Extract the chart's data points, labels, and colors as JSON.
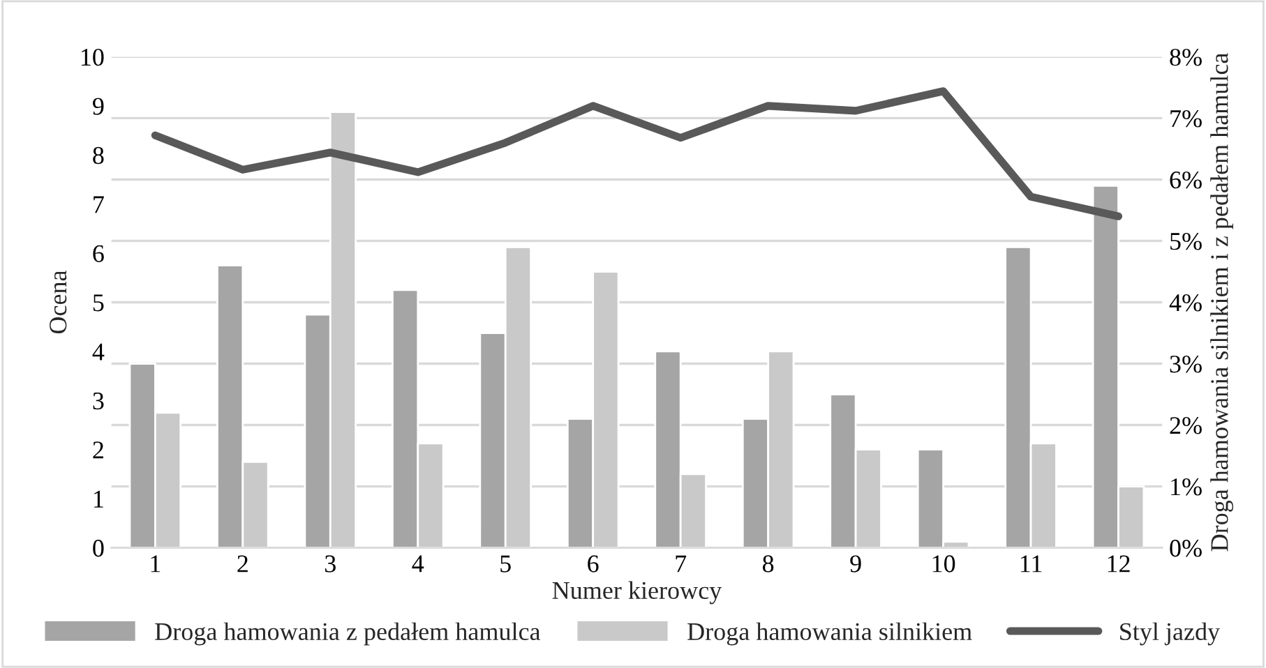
{
  "chart_data": {
    "type": "bar",
    "xlabel": "Numer kierowcy",
    "ylabel": "Ocena",
    "y2label": "Droga hamowania silnikiem i z pedałem hamulca",
    "categories": [
      "1",
      "2",
      "3",
      "4",
      "5",
      "6",
      "7",
      "8",
      "9",
      "10",
      "11",
      "12"
    ],
    "series": [
      {
        "name": "Droga hamowania z pedałem hamulca",
        "color": "#a5a5a5",
        "axis": "y2",
        "values": [
          3.0,
          4.6,
          3.8,
          4.2,
          3.5,
          2.1,
          3.2,
          2.1,
          2.5,
          1.6,
          4.9,
          5.9
        ]
      },
      {
        "name": "Droga hamowania silnikiem",
        "color": "#c9c9c9",
        "axis": "y2",
        "values": [
          2.2,
          1.4,
          7.1,
          1.7,
          4.9,
          4.5,
          1.2,
          3.2,
          1.6,
          0.1,
          1.7,
          1.0
        ]
      },
      {
        "name": "Styl jazdy",
        "type": "line",
        "color": "#595959",
        "values": [
          8.4,
          7.7,
          8.05,
          7.65,
          8.25,
          9.0,
          8.35,
          9.0,
          8.9,
          9.3,
          7.15,
          6.75
        ]
      }
    ],
    "ylim": [
      0,
      10
    ],
    "yticks": [
      0,
      1,
      2,
      3,
      4,
      5,
      6,
      7,
      8,
      9,
      10
    ],
    "y2lim": [
      0,
      8
    ],
    "y2ticks": [
      {
        "value": 0,
        "label": "0%"
      },
      {
        "value": 1,
        "label": "1%"
      },
      {
        "value": 2,
        "label": "2%"
      },
      {
        "value": 3,
        "label": "3%"
      },
      {
        "value": 4,
        "label": "4%"
      },
      {
        "value": 5,
        "label": "5%"
      },
      {
        "value": 6,
        "label": "6%"
      },
      {
        "value": 7,
        "label": "7%"
      },
      {
        "value": 8,
        "label": "8%"
      }
    ],
    "grid": "y",
    "legend": "bottom",
    "marker": "none",
    "line_style": "solid"
  }
}
